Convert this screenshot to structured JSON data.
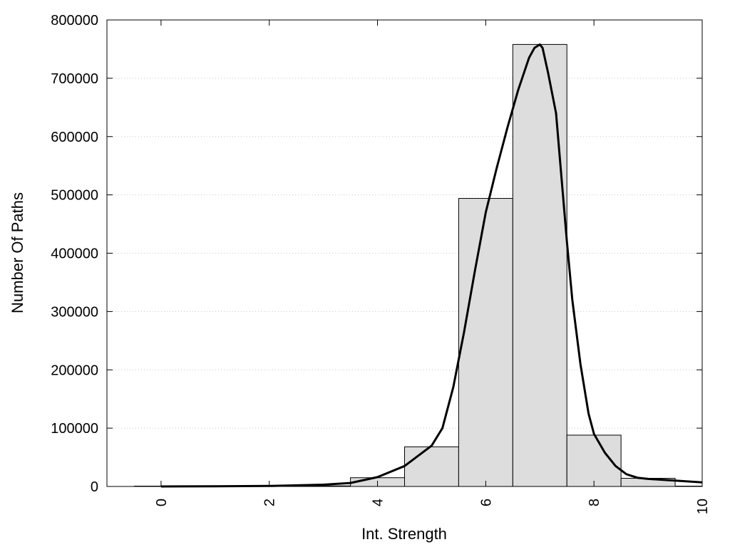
{
  "chart_data": {
    "type": "bar",
    "title": "",
    "xlabel": "Int. Strength",
    "ylabel": "Number Of Paths",
    "xlim": [
      -1,
      10
    ],
    "ylim": [
      0,
      800000
    ],
    "x_ticks": [
      0,
      2,
      4,
      6,
      8,
      10
    ],
    "x_tick_labels": [
      "0",
      "2",
      "4",
      "6",
      "8",
      "10"
    ],
    "y_ticks": [
      0,
      100000,
      200000,
      300000,
      400000,
      500000,
      600000,
      700000,
      800000
    ],
    "y_tick_labels": [
      "0",
      "100000",
      "200000",
      "300000",
      "400000",
      "500000",
      "600000",
      "700000",
      "800000"
    ],
    "grid": "horizontal-dotted",
    "bar_color": "#dddddd",
    "line_color": "#000000",
    "series": [
      {
        "type": "bar",
        "bins": [
          {
            "x0": -0.5,
            "x1": 0.5,
            "value": 0
          },
          {
            "x0": 0.5,
            "x1": 1.5,
            "value": 0
          },
          {
            "x0": 1.5,
            "x1": 2.5,
            "value": 0
          },
          {
            "x0": 2.5,
            "x1": 3.5,
            "value": 1000
          },
          {
            "x0": 3.5,
            "x1": 4.5,
            "value": 15000
          },
          {
            "x0": 4.5,
            "x1": 5.5,
            "value": 68000
          },
          {
            "x0": 5.5,
            "x1": 6.5,
            "value": 494000
          },
          {
            "x0": 6.5,
            "x1": 7.5,
            "value": 758000
          },
          {
            "x0": 7.5,
            "x1": 8.5,
            "value": 88000
          },
          {
            "x0": 8.5,
            "x1": 9.5,
            "value": 14000
          },
          {
            "x0": 9.5,
            "x1": 10.5,
            "value": 0
          }
        ]
      },
      {
        "type": "line",
        "points": [
          [
            0,
            0
          ],
          [
            1,
            200
          ],
          [
            2,
            800
          ],
          [
            3,
            3000
          ],
          [
            3.5,
            6000
          ],
          [
            4,
            16000
          ],
          [
            4.5,
            35000
          ],
          [
            5,
            70000
          ],
          [
            5.2,
            100000
          ],
          [
            5.4,
            170000
          ],
          [
            5.6,
            265000
          ],
          [
            5.8,
            370000
          ],
          [
            6,
            470000
          ],
          [
            6.2,
            545000
          ],
          [
            6.4,
            615000
          ],
          [
            6.6,
            680000
          ],
          [
            6.8,
            735000
          ],
          [
            6.9,
            752000
          ],
          [
            7.0,
            758000
          ],
          [
            7.05,
            752000
          ],
          [
            7.15,
            710000
          ],
          [
            7.3,
            640000
          ],
          [
            7.5,
            420000
          ],
          [
            7.6,
            320000
          ],
          [
            7.75,
            210000
          ],
          [
            7.9,
            125000
          ],
          [
            8.0,
            90000
          ],
          [
            8.2,
            58000
          ],
          [
            8.4,
            35000
          ],
          [
            8.6,
            21000
          ],
          [
            8.8,
            15000
          ],
          [
            9.0,
            13000
          ],
          [
            9.5,
            10000
          ],
          [
            10,
            7000
          ]
        ]
      }
    ]
  }
}
